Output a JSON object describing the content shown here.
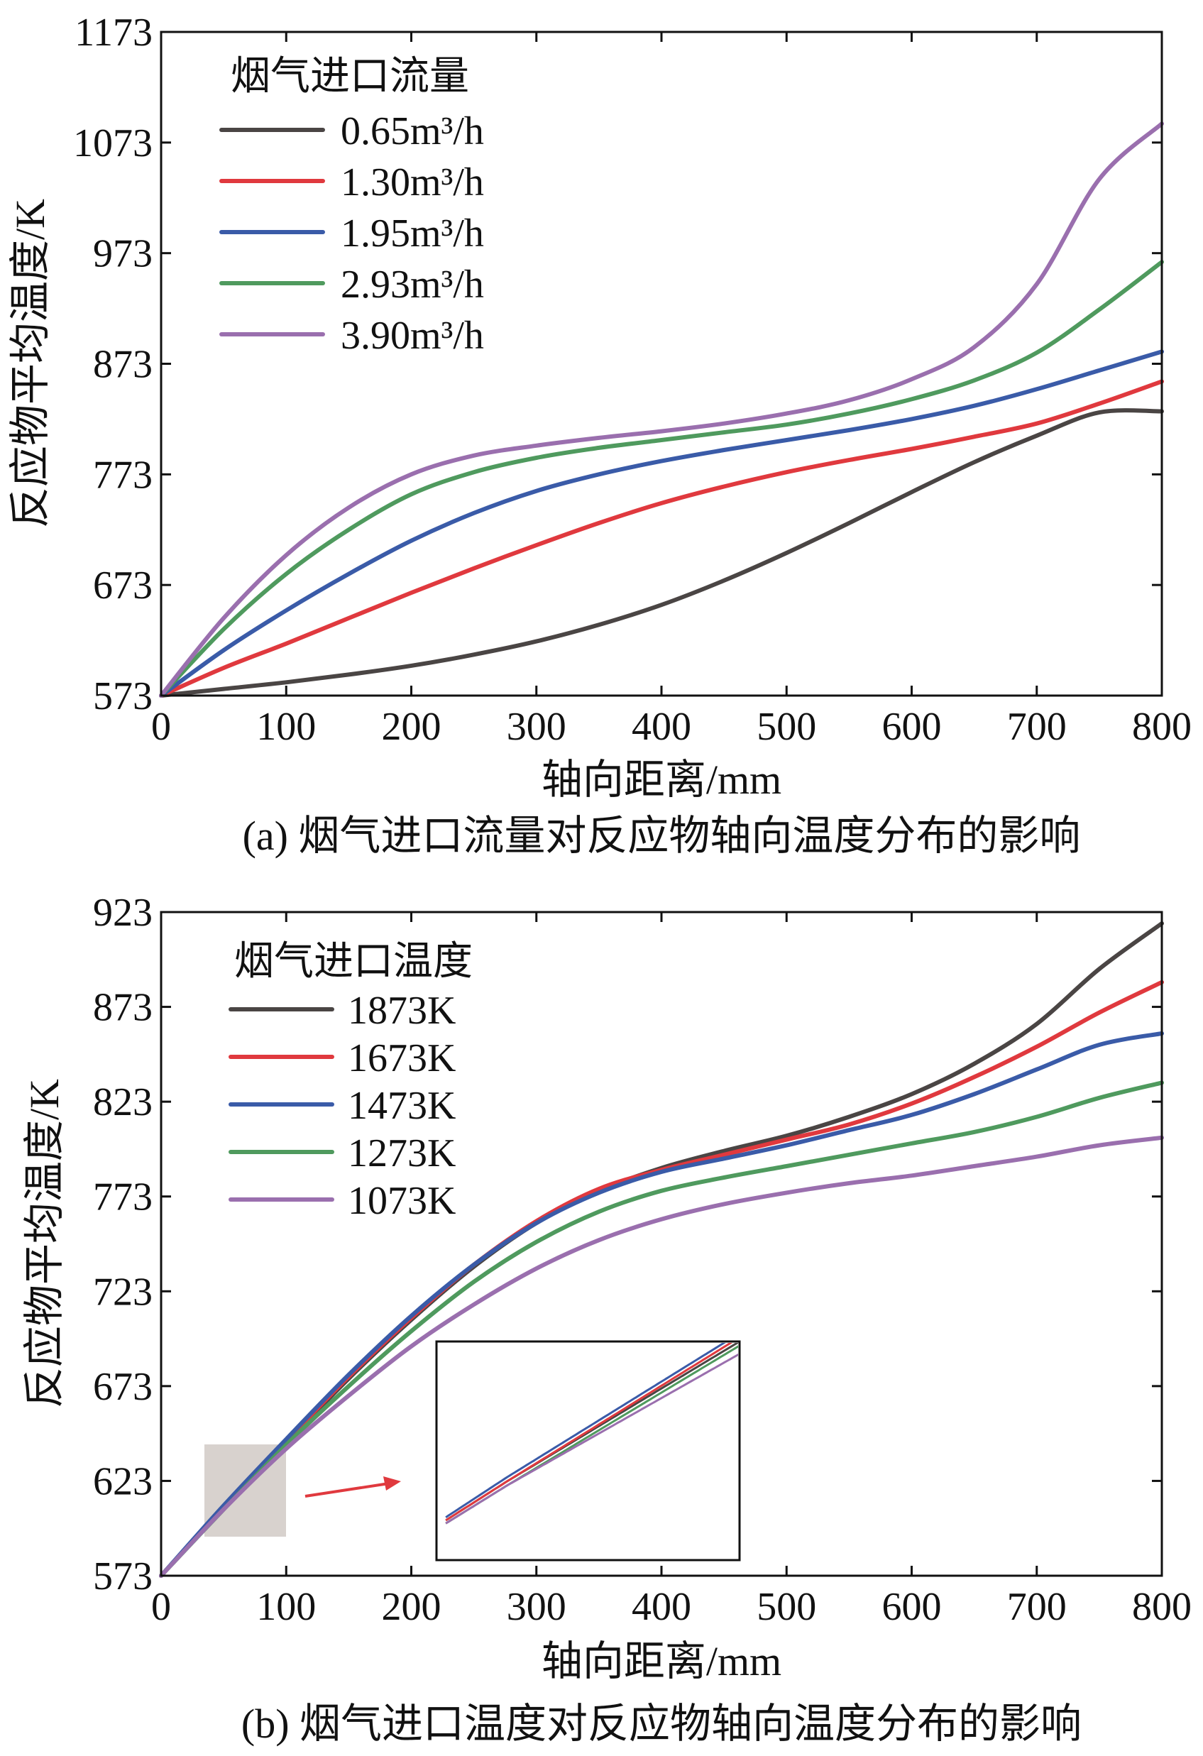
{
  "chart_data": [
    {
      "type": "line",
      "caption": "(a) 烟气进口流量对反应物轴向温度分布的影响",
      "xlabel": "轴向距离/mm",
      "ylabel": "反应物平均温度/K",
      "xlim": [
        0,
        800
      ],
      "ylim": [
        573,
        1173
      ],
      "xticks": [
        "0",
        "100",
        "200",
        "300",
        "400",
        "500",
        "600",
        "700",
        "800"
      ],
      "yticks": [
        "573",
        "673",
        "773",
        "873",
        "973",
        "1073",
        "1173"
      ],
      "legend_title": "烟气进口流量",
      "legend_position": "top-left",
      "x": [
        0,
        50,
        100,
        150,
        200,
        250,
        300,
        350,
        400,
        450,
        500,
        550,
        600,
        650,
        700,
        750,
        800
      ],
      "series": [
        {
          "name": "0.65m³/h",
          "color": "#4a4544",
          "values": [
            573,
            579,
            585,
            592,
            600,
            610,
            622,
            637,
            655,
            677,
            702,
            729,
            757,
            784,
            808,
            829,
            830
          ]
        },
        {
          "name": "1.30m³/h",
          "color": "#e0393e",
          "values": [
            573,
            598,
            620,
            643,
            666,
            688,
            709,
            729,
            747,
            762,
            775,
            786,
            796,
            807,
            819,
            837,
            857
          ]
        },
        {
          "name": "1.95m³/h",
          "color": "#3a5ba8",
          "values": [
            573,
            614,
            650,
            683,
            713,
            738,
            758,
            773,
            785,
            795,
            804,
            813,
            823,
            835,
            850,
            867,
            884
          ]
        },
        {
          "name": "2.93m³/h",
          "color": "#4f9a5e",
          "values": [
            573,
            633,
            683,
            723,
            755,
            775,
            788,
            797,
            804,
            811,
            818,
            828,
            841,
            858,
            883,
            922,
            965
          ]
        },
        {
          "name": "3.90m³/h",
          "color": "#9a6fae",
          "values": [
            573,
            643,
            700,
            743,
            773,
            790,
            799,
            806,
            812,
            819,
            828,
            840,
            859,
            888,
            945,
            1040,
            1090
          ]
        }
      ]
    },
    {
      "type": "line",
      "caption": "(b) 烟气进口温度对反应物轴向温度分布的影响",
      "xlabel": "轴向距离/mm",
      "ylabel": "反应物平均温度/K",
      "xlim": [
        0,
        800
      ],
      "ylim": [
        573,
        923
      ],
      "xticks": [
        "0",
        "100",
        "200",
        "300",
        "400",
        "500",
        "600",
        "700",
        "800"
      ],
      "yticks": [
        "573",
        "623",
        "673",
        "723",
        "773",
        "823",
        "873",
        "923"
      ],
      "legend_title": "烟气进口温度",
      "legend_position": "top-left",
      "x": [
        0,
        50,
        100,
        150,
        200,
        250,
        300,
        350,
        400,
        450,
        500,
        550,
        600,
        650,
        700,
        750,
        800
      ],
      "series": [
        {
          "name": "1873K",
          "color": "#4a4544",
          "values": [
            573,
            609,
            643,
            677,
            708,
            736,
            759,
            776,
            788,
            797,
            805,
            815,
            827,
            843,
            864,
            893,
            917
          ]
        },
        {
          "name": "1673K",
          "color": "#e0393e",
          "values": [
            573,
            609,
            644,
            678,
            709,
            737,
            760,
            777,
            787,
            795,
            803,
            811,
            822,
            836,
            852,
            870,
            886
          ]
        },
        {
          "name": "1473K",
          "color": "#3a5ba8",
          "values": [
            573,
            610,
            645,
            679,
            710,
            737,
            759,
            775,
            786,
            793,
            800,
            808,
            816,
            827,
            840,
            853,
            859
          ]
        },
        {
          "name": "1273K",
          "color": "#4f9a5e",
          "values": [
            573,
            608,
            642,
            673,
            702,
            728,
            749,
            765,
            776,
            783,
            789,
            795,
            801,
            807,
            815,
            825,
            833
          ]
        },
        {
          "name": "1073K",
          "color": "#9a6fae",
          "values": [
            573,
            608,
            640,
            668,
            694,
            716,
            735,
            750,
            761,
            769,
            775,
            780,
            784,
            789,
            794,
            800,
            804
          ]
        }
      ],
      "inset": {
        "x_range": [
          35,
          100
        ],
        "y_range": [
          590,
          643
        ],
        "arrow_color": "#e0393e"
      }
    }
  ]
}
